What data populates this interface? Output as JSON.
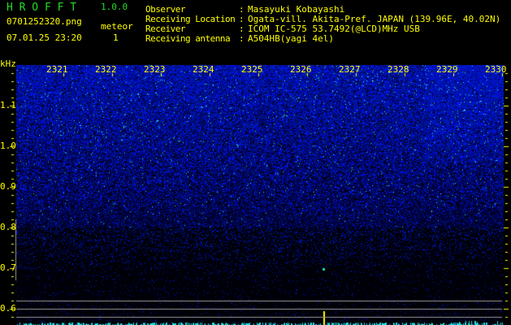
{
  "header": {
    "app_name": "H R O F F T",
    "version": "1.0.0",
    "filename": "0701252320.png",
    "datetime": "07.01.25 23:20",
    "meteor_label": "meteor",
    "meteor_count": "1"
  },
  "info": [
    {
      "label": "Observer",
      "value": "Masayuki Kobayashi"
    },
    {
      "label": "Receiving Location",
      "value": "Ogata-vill. Akita-Pref. JAPAN (139.96E, 40.02N)"
    },
    {
      "label": "Receiver",
      "value": "ICOM IC-575 53.7492(@LCD)MHz USB"
    },
    {
      "label": "Receiving antenna",
      "value": "A504HB(yagi 4el)"
    }
  ],
  "spectrogram": {
    "y_unit": "kHz",
    "y_ticks": [
      "1.1",
      "1.0",
      "0.9",
      "0.8",
      "0.7",
      "0.6"
    ],
    "time_ticks": [
      "2321",
      "2322",
      "2323",
      "2324",
      "2325",
      "2326",
      "2327",
      "2328",
      "2329",
      "2330"
    ],
    "colors": {
      "label": "#ffff00",
      "noise": "#1a2cff",
      "highlight": "#20e0e0",
      "logo": "#22dd22"
    }
  }
}
